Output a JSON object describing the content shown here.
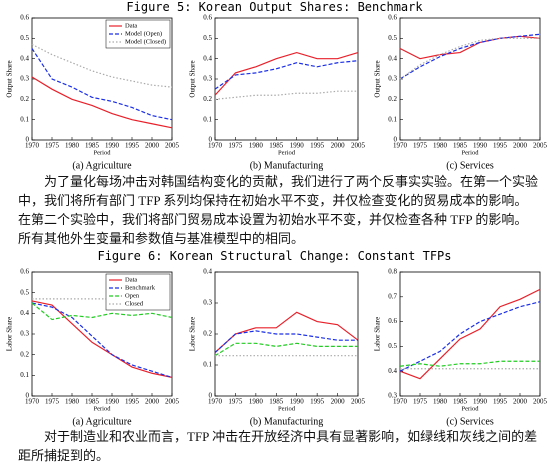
{
  "figure_titles": [
    "Figure 5: Korean Output Shares: Benchmark",
    "Figure 6: Korean Structural Change: Constant TFPs"
  ],
  "paragraphs": [
    "为了量化每场冲击对韩国结构变化的贡献，我们进行了两个反事实实验。在第一个实验中，我们将所有部门 TFP 系列均保持在初始水平不变，并仅检查变化的贸易成本的影响。在第二个实验中，我们将部门贸易成本设置为初始水平不变，并仅检查各种 TFP 的影响。 所有其他外生变量和参数值与基准模型中的相同。",
    "对于制造业和农业而言，TFP 冲击在开放经济中具有显著影响，如绿线和灰线之间的差距所捕捉到的。"
  ],
  "chart_data": [
    {
      "type": "line",
      "caption": "(a) Agriculture",
      "xlabel": "Period",
      "ylabel": "Output Share",
      "legend": "upper right",
      "x": [
        1970,
        1975,
        1980,
        1985,
        1990,
        1995,
        2000,
        2005
      ],
      "xlim": [
        1970,
        2005
      ],
      "xticks": [
        1970,
        1975,
        1980,
        1985,
        1990,
        1995,
        2000,
        2005
      ],
      "ylim": [
        0,
        0.6
      ],
      "yticks": [
        0,
        0.1,
        0.2,
        0.3,
        0.4,
        0.5,
        0.6
      ],
      "series": [
        {
          "name": "Data",
          "color": "#e8202a",
          "style": "solid",
          "values": [
            0.31,
            0.25,
            0.2,
            0.17,
            0.13,
            0.1,
            0.08,
            0.06
          ]
        },
        {
          "name": "Model (Open)",
          "color": "#1a2ee8",
          "style": "dashed",
          "values": [
            0.45,
            0.3,
            0.26,
            0.21,
            0.19,
            0.16,
            0.12,
            0.1
          ]
        },
        {
          "name": "Model (Closed)",
          "color": "#aaaaaa",
          "style": "dotted",
          "values": [
            0.47,
            0.42,
            0.38,
            0.34,
            0.31,
            0.29,
            0.27,
            0.26
          ]
        }
      ]
    },
    {
      "type": "line",
      "caption": "(b) Manufacturing",
      "xlabel": "Period",
      "ylabel": "Output Share",
      "x": [
        1970,
        1975,
        1980,
        1985,
        1990,
        1995,
        2000,
        2005
      ],
      "xlim": [
        1970,
        2005
      ],
      "xticks": [
        1970,
        1975,
        1980,
        1985,
        1990,
        1995,
        2000,
        2005
      ],
      "ylim": [
        0,
        0.6
      ],
      "yticks": [
        0,
        0.1,
        0.2,
        0.3,
        0.4,
        0.5,
        0.6
      ],
      "series": [
        {
          "color": "#e8202a",
          "style": "solid",
          "values": [
            0.22,
            0.33,
            0.36,
            0.4,
            0.43,
            0.4,
            0.4,
            0.43
          ]
        },
        {
          "color": "#1a2ee8",
          "style": "dashed",
          "values": [
            0.25,
            0.32,
            0.33,
            0.35,
            0.38,
            0.36,
            0.38,
            0.39
          ]
        },
        {
          "color": "#aaaaaa",
          "style": "dotted",
          "values": [
            0.2,
            0.21,
            0.22,
            0.22,
            0.23,
            0.23,
            0.24,
            0.24
          ]
        }
      ]
    },
    {
      "type": "line",
      "caption": "(c) Services",
      "xlabel": "Period",
      "ylabel": "Output Share",
      "x": [
        1970,
        1975,
        1980,
        1985,
        1990,
        1995,
        2000,
        2005
      ],
      "xlim": [
        1970,
        2005
      ],
      "xticks": [
        1970,
        1975,
        1980,
        1985,
        1990,
        1995,
        2000,
        2005
      ],
      "ylim": [
        0,
        0.6
      ],
      "yticks": [
        0,
        0.1,
        0.2,
        0.3,
        0.4,
        0.5,
        0.6
      ],
      "series": [
        {
          "color": "#e8202a",
          "style": "solid",
          "values": [
            0.45,
            0.4,
            0.42,
            0.43,
            0.48,
            0.5,
            0.51,
            0.5
          ]
        },
        {
          "color": "#1a2ee8",
          "style": "dashed",
          "values": [
            0.3,
            0.36,
            0.41,
            0.45,
            0.48,
            0.5,
            0.51,
            0.52
          ]
        },
        {
          "color": "#aaaaaa",
          "style": "dotted",
          "values": [
            0.3,
            0.37,
            0.42,
            0.46,
            0.49,
            0.5,
            0.5,
            0.5
          ]
        }
      ]
    },
    {
      "type": "line",
      "caption": "(a) Agriculture",
      "xlabel": "Period",
      "ylabel": "Labor Share",
      "legend": "upper right",
      "x": [
        1970,
        1975,
        1980,
        1985,
        1990,
        1995,
        2000,
        2005
      ],
      "xlim": [
        1970,
        2005
      ],
      "xticks": [
        1970,
        1975,
        1980,
        1985,
        1990,
        1995,
        2000,
        2005
      ],
      "ylim": [
        0,
        0.6
      ],
      "yticks": [
        0,
        0.1,
        0.2,
        0.3,
        0.4,
        0.5,
        0.6
      ],
      "series": [
        {
          "name": "Data",
          "color": "#e8202a",
          "style": "solid",
          "values": [
            0.46,
            0.44,
            0.35,
            0.26,
            0.2,
            0.14,
            0.11,
            0.09
          ]
        },
        {
          "name": "Benchmark",
          "color": "#1a2ee8",
          "style": "dashed",
          "values": [
            0.45,
            0.43,
            0.38,
            0.29,
            0.2,
            0.15,
            0.12,
            0.09
          ]
        },
        {
          "name": "Open",
          "color": "#22cc22",
          "style": "dashed",
          "values": [
            0.45,
            0.37,
            0.39,
            0.38,
            0.4,
            0.39,
            0.4,
            0.38
          ]
        },
        {
          "name": "Closed",
          "color": "#aaaaaa",
          "style": "dotted",
          "values": [
            0.47,
            0.47,
            0.47,
            0.47,
            0.47,
            0.47,
            0.47,
            0.47
          ]
        }
      ]
    },
    {
      "type": "line",
      "caption": "(b) Manufacturing",
      "xlabel": "Period",
      "ylabel": "Labor Share",
      "x": [
        1970,
        1975,
        1980,
        1985,
        1990,
        1995,
        2000,
        2005
      ],
      "xlim": [
        1970,
        2005
      ],
      "xticks": [
        1970,
        1975,
        1980,
        1985,
        1990,
        1995,
        2000,
        2005
      ],
      "ylim": [
        0,
        0.4
      ],
      "yticks": [
        0,
        0.1,
        0.2,
        0.3,
        0.4
      ],
      "series": [
        {
          "color": "#e8202a",
          "style": "solid",
          "values": [
            0.14,
            0.2,
            0.22,
            0.22,
            0.27,
            0.24,
            0.23,
            0.18
          ]
        },
        {
          "color": "#1a2ee8",
          "style": "dashed",
          "values": [
            0.14,
            0.2,
            0.21,
            0.2,
            0.2,
            0.19,
            0.18,
            0.18
          ]
        },
        {
          "color": "#22cc22",
          "style": "dashed",
          "values": [
            0.13,
            0.17,
            0.17,
            0.16,
            0.17,
            0.16,
            0.16,
            0.16
          ]
        },
        {
          "color": "#aaaaaa",
          "style": "dotted",
          "values": [
            0.13,
            0.13,
            0.13,
            0.13,
            0.13,
            0.13,
            0.13,
            0.13
          ]
        }
      ]
    },
    {
      "type": "line",
      "caption": "(c) Services",
      "xlabel": "Period",
      "ylabel": "Labor Share",
      "x": [
        1970,
        1975,
        1980,
        1985,
        1990,
        1995,
        2000,
        2005
      ],
      "xlim": [
        1970,
        2005
      ],
      "xticks": [
        1970,
        1975,
        1980,
        1985,
        1990,
        1995,
        2000,
        2005
      ],
      "ylim": [
        0.3,
        0.8
      ],
      "yticks": [
        0.3,
        0.4,
        0.5,
        0.6,
        0.7,
        0.8
      ],
      "series": [
        {
          "color": "#e8202a",
          "style": "solid",
          "values": [
            0.4,
            0.37,
            0.45,
            0.53,
            0.57,
            0.66,
            0.69,
            0.73
          ]
        },
        {
          "color": "#1a2ee8",
          "style": "dashed",
          "values": [
            0.4,
            0.44,
            0.48,
            0.55,
            0.6,
            0.63,
            0.66,
            0.68
          ]
        },
        {
          "color": "#22cc22",
          "style": "dashed",
          "values": [
            0.42,
            0.43,
            0.42,
            0.43,
            0.43,
            0.44,
            0.44,
            0.44
          ]
        },
        {
          "color": "#aaaaaa",
          "style": "dotted",
          "values": [
            0.41,
            0.41,
            0.41,
            0.41,
            0.41,
            0.41,
            0.41,
            0.41
          ]
        }
      ]
    }
  ]
}
